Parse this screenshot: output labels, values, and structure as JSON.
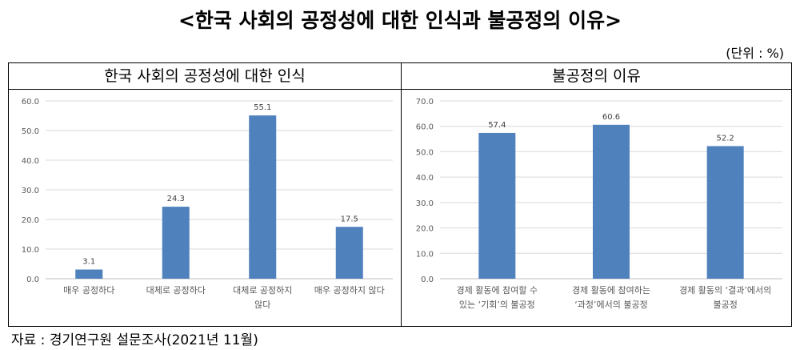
{
  "title": "<한국 사회의 공정성에 대한 인식과 불공정의 이유>",
  "unit_note": "(단위 : %)",
  "source": "자료 : 경기연구원 설문조사(2021년 11월)",
  "colors": {
    "bar": "#4f81bd",
    "grid": "#d9d9d9"
  },
  "chart_data": [
    {
      "type": "bar",
      "title": "한국 사회의 공정성에 대한 인식",
      "categories": [
        [
          "매우 공정하다"
        ],
        [
          "대체로 공정하다"
        ],
        [
          "대체로 공정하지",
          "않다"
        ],
        [
          "매우 공정하지 않다"
        ]
      ],
      "values": [
        3.1,
        24.3,
        55.1,
        17.5
      ],
      "value_labels": [
        "3.1",
        "24.3",
        "55.1",
        "17.5"
      ],
      "yticks": [
        "0.0",
        "10.0",
        "20.0",
        "30.0",
        "40.0",
        "50.0",
        "60.0"
      ],
      "ylim": [
        0,
        60
      ],
      "grid": true
    },
    {
      "type": "bar",
      "title": "불공정의 이유",
      "categories": [
        [
          "경제 활동에 참여할 수",
          "있는 ‘기회’의 불공정"
        ],
        [
          "경제 활동에 참여하는",
          "‘과정’에서의 불공정"
        ],
        [
          "경제 활동의 ‘결과’에서의",
          "불공정"
        ]
      ],
      "values": [
        57.4,
        60.6,
        52.2
      ],
      "value_labels": [
        "57.4",
        "60.6",
        "52.2"
      ],
      "yticks": [
        "0.0",
        "10.0",
        "20.0",
        "30.0",
        "40.0",
        "50.0",
        "60.0",
        "70.0"
      ],
      "ylim": [
        0,
        70
      ],
      "grid": true
    }
  ]
}
